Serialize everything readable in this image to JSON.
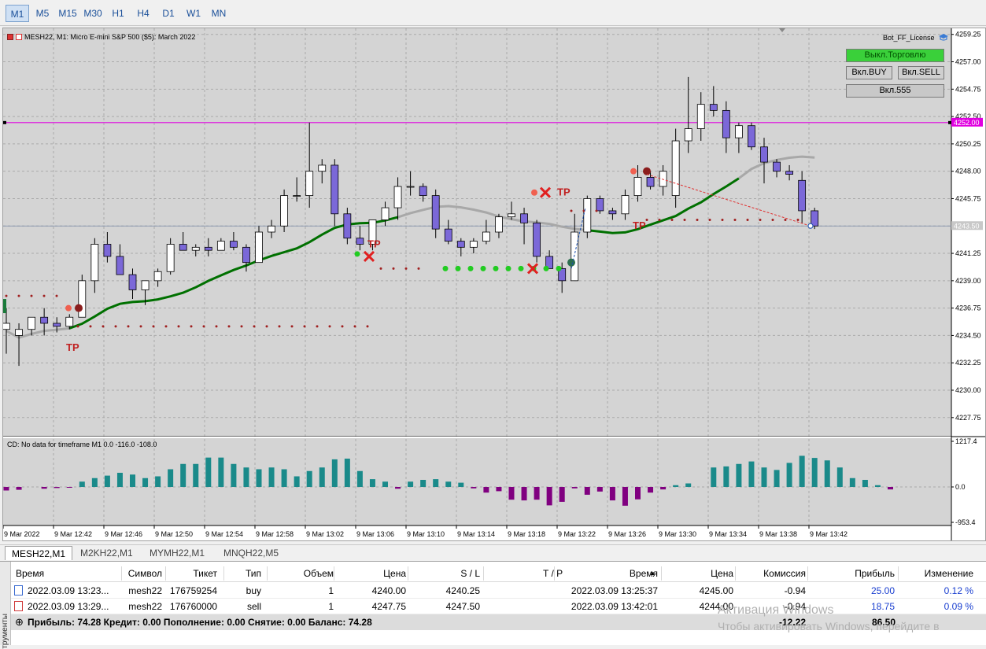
{
  "timeframes": [
    "M1",
    "M5",
    "M15",
    "M30",
    "H1",
    "H4",
    "D1",
    "W1",
    "MN"
  ],
  "active_timeframe": "M1",
  "chart": {
    "title": "MESH22, M1:  Micro E-mini S&P 500 ($5): March 2022",
    "ea_name": "Bot_FF_License",
    "buttons": {
      "trade_off": "Выкл.Торговлю",
      "buy_on": "Вкл.BUY",
      "sell_on": "Вкл.SELL",
      "on_555": "Вкл.555"
    },
    "price_labels": [
      "4259.25",
      "4257.00",
      "4254.75",
      "4252.50",
      "4250.25",
      "4248.00",
      "4245.75",
      "4243.50",
      "4241.25",
      "4239.00",
      "4236.75",
      "4234.50",
      "4232.25",
      "4230.00",
      "4227.75"
    ],
    "price_range": [
      4226.25,
      4259.75
    ],
    "h_line_price": 4252.0,
    "h_line_label": "4252.00",
    "bid_price": 4243.5,
    "bid_label": "4243.50",
    "tp_marks": [
      "TP",
      "TP",
      "TP",
      "TP"
    ],
    "time_labels": [
      "9 Mar 2022",
      "9 Mar 12:42",
      "9 Mar 12:46",
      "9 Mar 12:50",
      "9 Mar 12:54",
      "9 Mar 12:58",
      "9 Mar 13:02",
      "9 Mar 13:06",
      "9 Mar 13:10",
      "9 Mar 13:14",
      "9 Mar 13:18",
      "9 Mar 13:22",
      "9 Mar 13:26",
      "9 Mar 13:30",
      "9 Mar 13:34",
      "9 Mar 13:38",
      "9 Mar 13:42"
    ],
    "colors": {
      "bull": "#ffffff",
      "bear": "#7b68d8",
      "hline": "#e000e0",
      "ma_green": "#007000",
      "ma_gray": "#a8a8a8",
      "hist_pos": "#1a8a8a",
      "hist_neg": "#800080",
      "buy_dot": "#22cc22",
      "sell_dot": "#a02020",
      "tp_red": "#c02020"
    }
  },
  "chart_data": {
    "type": "candlestick",
    "candles": [
      [
        4235.0,
        4236.75,
        4233.0,
        4235.5
      ],
      [
        4234.5,
        4235.5,
        4232.0,
        4235.0
      ],
      [
        4235.0,
        4236.0,
        4234.5,
        4236.0
      ],
      [
        4236.0,
        4236.75,
        4234.5,
        4235.5
      ],
      [
        4235.5,
        4236.0,
        4234.75,
        4235.25
      ],
      [
        4235.25,
        4236.25,
        4235.0,
        4236.0
      ],
      [
        4236.0,
        4239.5,
        4236.0,
        4239.0
      ],
      [
        4239.0,
        4242.5,
        4238.0,
        4242.0
      ],
      [
        4242.0,
        4243.0,
        4240.5,
        4241.0
      ],
      [
        4241.0,
        4242.0,
        4239.5,
        4239.5
      ],
      [
        4239.5,
        4240.0,
        4237.5,
        4238.25
      ],
      [
        4238.25,
        4239.0,
        4237.0,
        4239.0
      ],
      [
        4239.0,
        4240.0,
        4238.5,
        4239.75
      ],
      [
        4239.75,
        4242.5,
        4239.5,
        4242.0
      ],
      [
        4242.0,
        4243.0,
        4241.5,
        4241.5
      ],
      [
        4241.5,
        4242.0,
        4241.0,
        4241.75
      ],
      [
        4241.75,
        4242.5,
        4241.0,
        4241.5
      ],
      [
        4241.5,
        4242.5,
        4241.5,
        4242.25
      ],
      [
        4242.25,
        4243.0,
        4241.5,
        4241.75
      ],
      [
        4241.75,
        4242.0,
        4239.75,
        4240.5
      ],
      [
        4240.5,
        4243.5,
        4240.5,
        4243.0
      ],
      [
        4243.0,
        4244.0,
        4242.5,
        4243.5
      ],
      [
        4243.5,
        4246.5,
        4243.0,
        4246.0
      ],
      [
        4246.0,
        4247.5,
        4245.5,
        4246.0
      ],
      [
        4246.0,
        4252.0,
        4245.0,
        4248.0
      ],
      [
        4248.0,
        4249.0,
        4247.0,
        4248.5
      ],
      [
        4248.5,
        4249.0,
        4243.5,
        4244.5
      ],
      [
        4244.5,
        4245.0,
        4242.0,
        4242.5
      ],
      [
        4242.5,
        4243.5,
        4241.5,
        4242.0
      ],
      [
        4242.0,
        4244.0,
        4241.5,
        4244.0
      ],
      [
        4244.0,
        4245.5,
        4243.5,
        4245.0
      ],
      [
        4245.0,
        4247.5,
        4244.0,
        4246.75
      ],
      [
        4246.75,
        4248.0,
        4246.0,
        4246.75
      ],
      [
        4246.75,
        4247.0,
        4245.5,
        4246.0
      ],
      [
        4246.0,
        4246.5,
        4242.5,
        4243.25
      ],
      [
        4243.25,
        4244.0,
        4242.0,
        4242.25
      ],
      [
        4242.25,
        4242.5,
        4241.0,
        4241.75
      ],
      [
        4241.75,
        4242.5,
        4241.25,
        4242.25
      ],
      [
        4242.25,
        4244.0,
        4242.0,
        4243.0
      ],
      [
        4243.0,
        4244.5,
        4242.5,
        4244.25
      ],
      [
        4244.25,
        4245.5,
        4244.0,
        4244.5
      ],
      [
        4244.5,
        4245.0,
        4242.0,
        4243.75
      ],
      [
        4243.75,
        4244.0,
        4240.5,
        4241.0
      ],
      [
        4241.0,
        4241.5,
        4240.0,
        4240.0
      ],
      [
        4240.0,
        4240.5,
        4238.0,
        4239.0
      ],
      [
        4239.0,
        4244.5,
        4239.0,
        4243.0
      ],
      [
        4243.0,
        4246.0,
        4242.5,
        4245.75
      ],
      [
        4245.75,
        4246.0,
        4244.5,
        4244.75
      ],
      [
        4244.75,
        4245.0,
        4244.0,
        4244.5
      ],
      [
        4244.5,
        4246.5,
        4244.0,
        4246.0
      ],
      [
        4246.0,
        4248.5,
        4245.5,
        4247.5
      ],
      [
        4247.5,
        4248.0,
        4246.5,
        4246.75
      ],
      [
        4246.75,
        4248.5,
        4246.0,
        4248.0
      ],
      [
        4246.0,
        4251.5,
        4245.0,
        4250.5
      ],
      [
        4250.5,
        4255.75,
        4249.5,
        4251.5
      ],
      [
        4251.5,
        4254.5,
        4250.5,
        4253.5
      ],
      [
        4253.5,
        4255.0,
        4252.5,
        4253.0
      ],
      [
        4253.0,
        4253.75,
        4249.5,
        4250.75
      ],
      [
        4250.75,
        4252.0,
        4249.5,
        4251.75
      ],
      [
        4251.75,
        4252.0,
        4249.75,
        4250.0
      ],
      [
        4250.0,
        4250.75,
        4247.0,
        4248.75
      ],
      [
        4248.75,
        4249.0,
        4247.5,
        4248.0
      ],
      [
        4248.0,
        4248.5,
        4247.25,
        4247.75
      ],
      [
        4247.25,
        4248.0,
        4243.75,
        4244.75
      ],
      [
        4244.75,
        4245.0,
        4243.25,
        4243.5
      ]
    ],
    "cd_histogram": [
      -0.1,
      -0.08,
      0.0,
      -0.05,
      -0.03,
      -0.02,
      0.15,
      0.25,
      0.32,
      0.4,
      0.35,
      0.25,
      0.3,
      0.5,
      0.65,
      0.65,
      0.83,
      0.83,
      0.65,
      0.55,
      0.5,
      0.55,
      0.5,
      0.3,
      0.45,
      0.55,
      0.78,
      0.8,
      0.45,
      0.22,
      0.15,
      -0.05,
      0.15,
      0.2,
      0.22,
      0.15,
      0.12,
      -0.04,
      -0.16,
      -0.12,
      -0.36,
      -0.38,
      -0.36,
      -0.52,
      -0.42,
      -0.04,
      -0.22,
      -0.13,
      -0.38,
      -0.53,
      -0.35,
      -0.16,
      -0.07,
      0.05,
      0.1,
      0.0,
      0.55,
      0.58,
      0.65,
      0.72,
      0.55,
      0.48,
      0.68,
      0.88,
      0.82,
      0.75,
      0.55,
      0.25,
      0.2,
      0.05,
      -0.07
    ],
    "cd_labels": {
      "top": "1217.4",
      "zero": "0.0",
      "bottom": "-953.4"
    },
    "indicator_label": "CD: No data for timeframe M1 0.0 -116.0 -108.0"
  },
  "symbol_tabs": [
    "MESH22,M1",
    "M2KH22,M1",
    "MYMH22,M1",
    "MNQH22,M5"
  ],
  "terminal": {
    "side_label": "трументы",
    "headers": [
      "Время",
      "Символ",
      "Тикет",
      "Тип",
      "Объем",
      "Цена",
      "S / L",
      "T / P",
      "Время",
      "Цена",
      "Комиссия",
      "Прибыль",
      "Изменение"
    ],
    "rows": [
      [
        "2022.03.09 13:23...",
        "mesh22",
        "176759254",
        "buy",
        "1",
        "4240.00",
        "4240.25",
        "",
        "2022.03.09 13:25:37",
        "4245.00",
        "-0.94",
        "25.00",
        "0.12 %"
      ],
      [
        "2022.03.09 13:29...",
        "mesh22",
        "176760000",
        "sell",
        "1",
        "4247.75",
        "4247.50",
        "",
        "2022.03.09 13:42:01",
        "4244.00",
        "-0.94",
        "18.75",
        "0.09 %"
      ]
    ],
    "summary": "Прибыль: 74.28  Кредит: 0.00  Пополнение: 0.00  Снятие: 0.00  Баланс: 74.28",
    "summary_commission": "-12.22",
    "summary_profit": "86.50"
  },
  "watermark": {
    "line1": "Активация Windows",
    "line2": "Чтобы активировать Windows, перейдите в"
  }
}
